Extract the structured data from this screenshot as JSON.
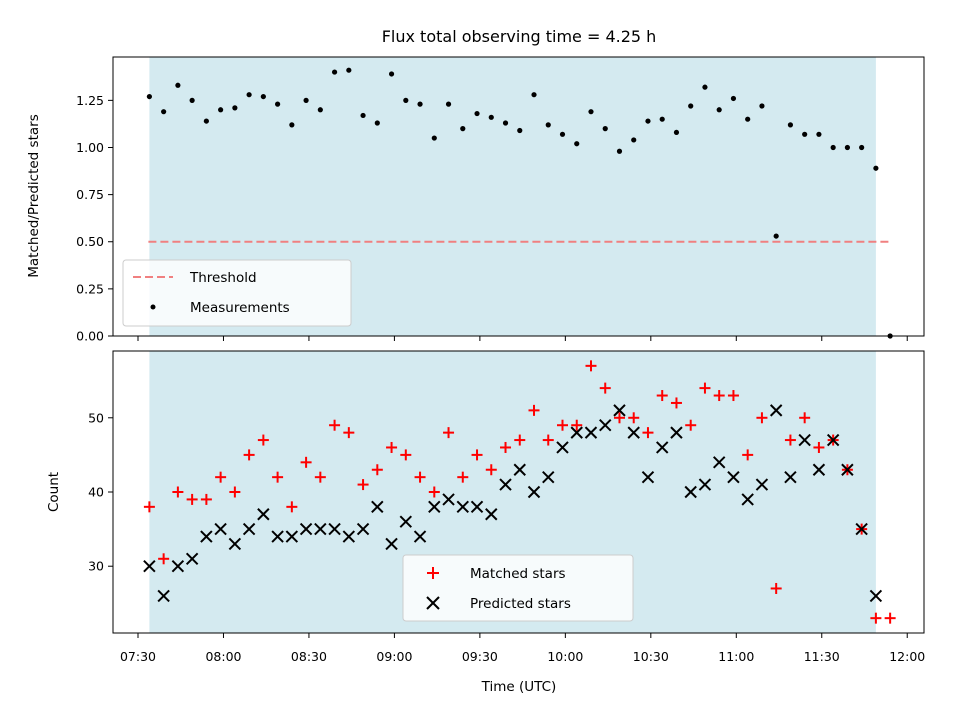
{
  "chart_data": [
    {
      "type": "scatter",
      "panel": "top",
      "title": "Flux total observing time = 4.25 h",
      "xlabel": "",
      "ylabel": "Matched/Predicted stars",
      "ylim": [
        0,
        1.48
      ],
      "yticks": [
        "0.00",
        "0.25",
        "0.50",
        "0.75",
        "1.00",
        "1.25"
      ],
      "shaded_span": {
        "start": "07:34",
        "end": "11:49",
        "color": "#d4eaf0"
      },
      "threshold": {
        "name": "Threshold",
        "value": 0.5,
        "color": "#f08080",
        "style": "dashed"
      },
      "series": [
        {
          "name": "Measurements",
          "marker": "dot",
          "color": "#000000",
          "x": [
            "07:34",
            "07:39",
            "07:44",
            "07:49",
            "07:54",
            "07:59",
            "08:04",
            "08:09",
            "08:14",
            "08:19",
            "08:24",
            "08:29",
            "08:34",
            "08:39",
            "08:44",
            "08:49",
            "08:54",
            "08:59",
            "09:04",
            "09:09",
            "09:14",
            "09:19",
            "09:24",
            "09:29",
            "09:34",
            "09:39",
            "09:44",
            "09:49",
            "09:54",
            "09:59",
            "10:04",
            "10:09",
            "10:14",
            "10:19",
            "10:24",
            "10:29",
            "10:34",
            "10:39",
            "10:44",
            "10:49",
            "10:54",
            "10:59",
            "11:04",
            "11:09",
            "11:14",
            "11:19",
            "11:24",
            "11:29",
            "11:34",
            "11:39",
            "11:44",
            "11:49",
            "11:54"
          ],
          "y": [
            1.27,
            1.19,
            1.33,
            1.25,
            1.14,
            1.2,
            1.21,
            1.28,
            1.27,
            1.23,
            1.12,
            1.25,
            1.2,
            1.4,
            1.41,
            1.17,
            1.13,
            1.39,
            1.25,
            1.23,
            1.05,
            1.23,
            1.1,
            1.18,
            1.16,
            1.13,
            1.09,
            1.28,
            1.12,
            1.07,
            1.02,
            1.19,
            1.1,
            0.98,
            1.04,
            1.14,
            1.15,
            1.08,
            1.22,
            1.32,
            1.2,
            1.26,
            1.15,
            1.22,
            0.53,
            1.12,
            1.07,
            1.07,
            1.0,
            1.0,
            1.0,
            0.89,
            0.0
          ]
        }
      ],
      "legend": {
        "position": "lower-left",
        "entries": [
          "Threshold",
          "Measurements"
        ]
      }
    },
    {
      "type": "scatter",
      "panel": "bottom",
      "title": "",
      "xlabel": "Time (UTC)",
      "ylabel": "Count",
      "ylim": [
        21,
        59
      ],
      "yticks": [
        "30",
        "40",
        "50"
      ],
      "xticks": [
        "07:30",
        "08:00",
        "08:30",
        "09:00",
        "09:30",
        "10:00",
        "10:30",
        "11:00",
        "11:30",
        "12:00"
      ],
      "shaded_span": {
        "start": "07:34",
        "end": "11:49",
        "color": "#d4eaf0"
      },
      "x": [
        "07:34",
        "07:39",
        "07:44",
        "07:49",
        "07:54",
        "07:59",
        "08:04",
        "08:09",
        "08:14",
        "08:19",
        "08:24",
        "08:29",
        "08:34",
        "08:39",
        "08:44",
        "08:49",
        "08:54",
        "08:59",
        "09:04",
        "09:09",
        "09:14",
        "09:19",
        "09:24",
        "09:29",
        "09:34",
        "09:39",
        "09:44",
        "09:49",
        "09:54",
        "09:59",
        "10:04",
        "10:09",
        "10:14",
        "10:19",
        "10:24",
        "10:29",
        "10:34",
        "10:39",
        "10:44",
        "10:49",
        "10:54",
        "10:59",
        "11:04",
        "11:09",
        "11:14",
        "11:19",
        "11:24",
        "11:29",
        "11:34",
        "11:39",
        "11:44",
        "11:49",
        "11:54"
      ],
      "series": [
        {
          "name": "Matched stars",
          "marker": "plus",
          "color": "#ff0000",
          "values": [
            38,
            31,
            40,
            39,
            39,
            42,
            40,
            45,
            47,
            42,
            38,
            44,
            42,
            49,
            48,
            41,
            43,
            46,
            45,
            42,
            40,
            48,
            42,
            45,
            43,
            46,
            47,
            51,
            47,
            49,
            49,
            57,
            54,
            50,
            50,
            48,
            53,
            52,
            49,
            54,
            53,
            53,
            45,
            50,
            27,
            47,
            50,
            46,
            47,
            43,
            35,
            23,
            23
          ]
        },
        {
          "name": "Predicted stars",
          "marker": "x",
          "color": "#000000",
          "values": [
            30,
            26,
            30,
            31,
            34,
            35,
            33,
            35,
            37,
            34,
            34,
            35,
            35,
            35,
            34,
            35,
            38,
            33,
            36,
            34,
            38,
            39,
            38,
            38,
            37,
            41,
            43,
            40,
            42,
            46,
            48,
            48,
            49,
            51,
            48,
            42,
            46,
            48,
            40,
            41,
            44,
            42,
            39,
            41,
            51,
            42,
            47,
            43,
            47,
            43,
            35,
            26,
            null
          ]
        }
      ],
      "legend": {
        "position": "lower-center",
        "entries": [
          "Matched stars",
          "Predicted stars"
        ]
      }
    }
  ]
}
